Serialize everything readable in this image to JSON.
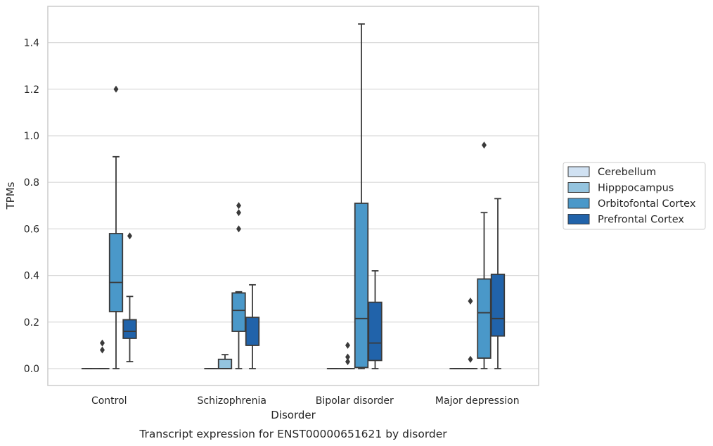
{
  "chart_data": {
    "type": "box",
    "caption": "Transcript expression for ENST00000651621 by disorder",
    "xlabel": "Disorder",
    "ylabel": "TPMs",
    "ylim": [
      -0.07,
      1.55
    ],
    "yticks": [
      "0.0",
      "0.2",
      "0.4",
      "0.6",
      "0.8",
      "1.0",
      "1.2",
      "1.4"
    ],
    "grid": "horizontal",
    "legend_position": "right",
    "categories": [
      "Control",
      "Schizophrenia",
      "Bipolar disorder",
      "Major depression"
    ],
    "series": [
      {
        "name": "Cerebellum",
        "color": "#d0e1f2",
        "boxes": [
          {
            "q1": 0,
            "median": 0,
            "q3": 0,
            "whisker_low": 0,
            "whisker_high": 0,
            "outliers": []
          },
          {
            "q1": 0,
            "median": 0,
            "q3": 0,
            "whisker_low": 0,
            "whisker_high": 0,
            "outliers": []
          },
          {
            "q1": 0,
            "median": 0,
            "q3": 0,
            "whisker_low": 0,
            "whisker_high": 0,
            "outliers": []
          },
          {
            "q1": 0,
            "median": 0,
            "q3": 0,
            "whisker_low": 0,
            "whisker_high": 0,
            "outliers": []
          }
        ]
      },
      {
        "name": "Hipppocampus",
        "color": "#94c4df",
        "boxes": [
          {
            "q1": 0,
            "median": 0,
            "q3": 0,
            "whisker_low": 0,
            "whisker_high": 0,
            "outliers": [
              0.08,
              0.11
            ]
          },
          {
            "q1": 0,
            "median": 0,
            "q3": 0.04,
            "whisker_low": 0,
            "whisker_high": 0.06,
            "outliers": []
          },
          {
            "q1": 0,
            "median": 0,
            "q3": 0,
            "whisker_low": 0,
            "whisker_high": 0,
            "outliers": [
              0.03,
              0.05,
              0.1
            ]
          },
          {
            "q1": 0,
            "median": 0,
            "q3": 0,
            "whisker_low": 0,
            "whisker_high": 0,
            "outliers": [
              0.04,
              0.29
            ]
          }
        ]
      },
      {
        "name": "Orbitofontal Cortex",
        "color": "#4a98c9",
        "boxes": [
          {
            "q1": 0.245,
            "median": 0.37,
            "q3": 0.58,
            "whisker_low": 0,
            "whisker_high": 0.91,
            "outliers": [
              1.2
            ]
          },
          {
            "q1": 0.16,
            "median": 0.25,
            "q3": 0.325,
            "whisker_low": 0,
            "whisker_high": 0.33,
            "outliers": [
              0.6,
              0.67,
              0.7
            ]
          },
          {
            "q1": 0.005,
            "median": 0.215,
            "q3": 0.71,
            "whisker_low": 0,
            "whisker_high": 1.48,
            "outliers": []
          },
          {
            "q1": 0.045,
            "median": 0.24,
            "q3": 0.385,
            "whisker_low": 0,
            "whisker_high": 0.67,
            "outliers": [
              0.96
            ]
          }
        ]
      },
      {
        "name": "Prefrontal Cortex",
        "color": "#2163aa",
        "boxes": [
          {
            "q1": 0.13,
            "median": 0.16,
            "q3": 0.21,
            "whisker_low": 0.03,
            "whisker_high": 0.31,
            "outliers": [
              0.57
            ]
          },
          {
            "q1": 0.1,
            "median": 0.1,
            "q3": 0.22,
            "whisker_low": 0,
            "whisker_high": 0.36,
            "outliers": []
          },
          {
            "q1": 0.035,
            "median": 0.11,
            "q3": 0.285,
            "whisker_low": 0,
            "whisker_high": 0.42,
            "outliers": []
          },
          {
            "q1": 0.14,
            "median": 0.215,
            "q3": 0.405,
            "whisker_low": 0,
            "whisker_high": 0.73,
            "outliers": []
          }
        ]
      }
    ]
  }
}
